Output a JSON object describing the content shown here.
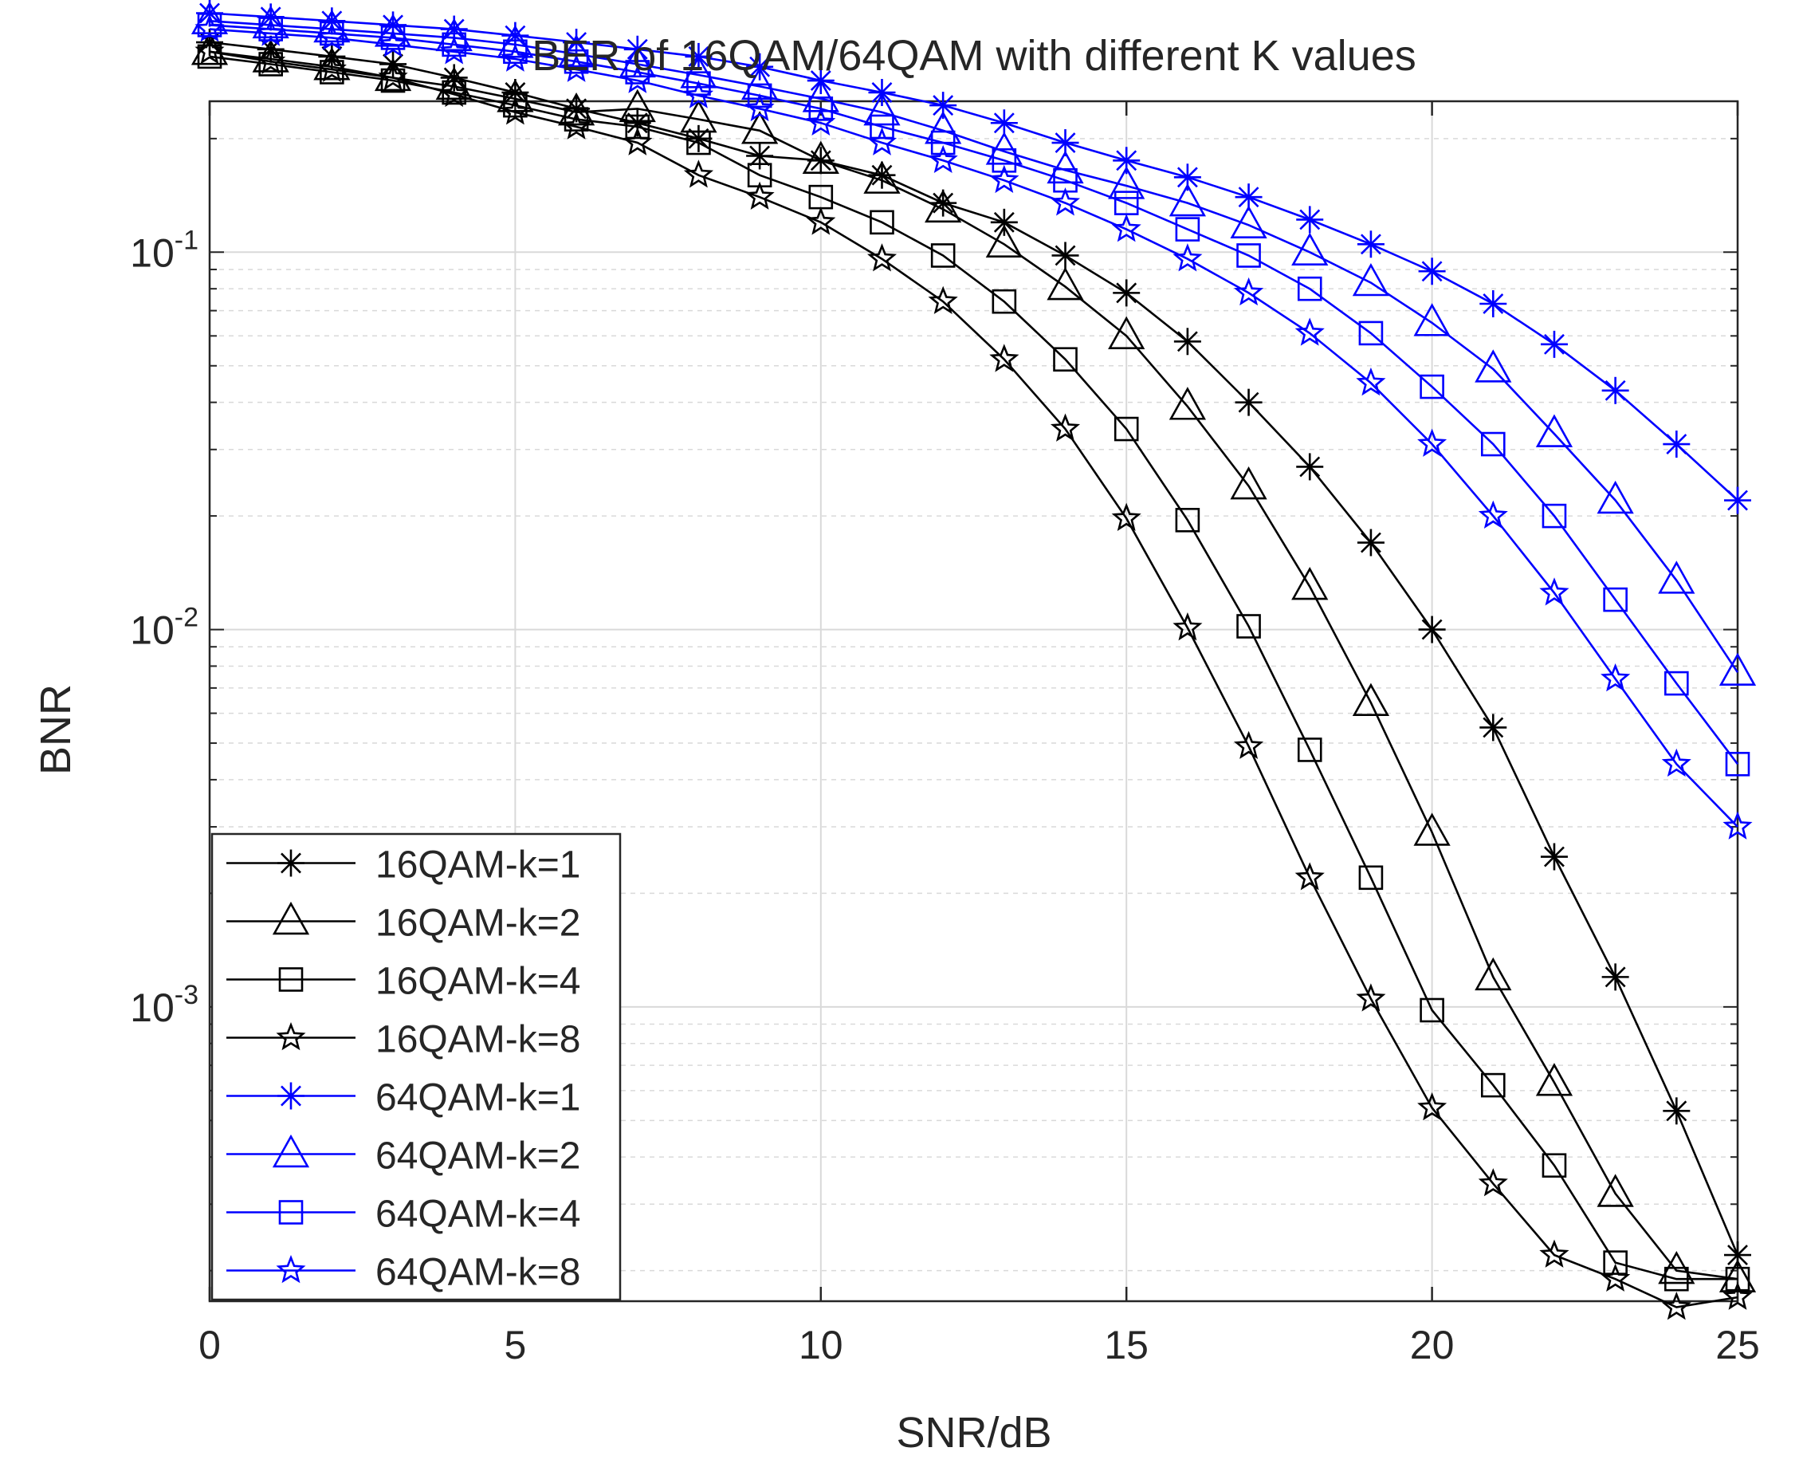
{
  "chart_data": {
    "type": "line",
    "title": "BER of 16QAM/64QAM with different K values",
    "xlabel": "SNR/dB",
    "ylabel": "BNR",
    "xlim": [
      0,
      25
    ],
    "ylim_log10": [
      -3.78,
      -0.6
    ],
    "y_scale": "log",
    "grid": true,
    "legend_position": "bottom-left",
    "xticks": [
      {
        "value": 0,
        "label": "0"
      },
      {
        "value": 5,
        "label": "5"
      },
      {
        "value": 10,
        "label": "10"
      },
      {
        "value": 15,
        "label": "15"
      },
      {
        "value": 20,
        "label": "20"
      },
      {
        "value": 25,
        "label": "25"
      }
    ],
    "yticks": [
      {
        "value": 0.1,
        "base": "10",
        "exp": "-1"
      },
      {
        "value": 0.01,
        "base": "10",
        "exp": "-2"
      },
      {
        "value": 0.001,
        "base": "10",
        "exp": "-3"
      }
    ],
    "x": [
      0,
      1,
      2,
      3,
      4,
      5,
      6,
      7,
      8,
      9,
      10,
      11,
      12,
      13,
      14,
      15,
      16,
      17,
      18,
      19,
      20,
      21,
      22,
      23,
      24,
      25
    ],
    "colors": {
      "black": "#000000",
      "blue": "#0000ff",
      "grid": "#d9d9d9"
    },
    "series": [
      {
        "name": "16QAM-k=1",
        "color": "#000000",
        "marker": "asterisk",
        "values": [
          0.36,
          0.345,
          0.33,
          0.315,
          0.29,
          0.265,
          0.24,
          0.22,
          0.2,
          0.18,
          0.175,
          0.16,
          0.135,
          0.12,
          0.098,
          0.078,
          0.058,
          0.04,
          0.027,
          0.017,
          0.01,
          0.0055,
          0.0025,
          0.0012,
          0.00053,
          0.00022
        ]
      },
      {
        "name": "16QAM-k=2",
        "color": "#000000",
        "marker": "triangle",
        "values": [
          0.34,
          0.325,
          0.31,
          0.29,
          0.275,
          0.255,
          0.235,
          0.24,
          0.225,
          0.21,
          0.175,
          0.155,
          0.13,
          0.105,
          0.081,
          0.06,
          0.039,
          0.024,
          0.013,
          0.0064,
          0.0029,
          0.0012,
          0.00063,
          0.00032,
          0.0002,
          0.00019
        ]
      },
      {
        "name": "16QAM-k=4",
        "color": "#000000",
        "marker": "square",
        "values": [
          0.33,
          0.315,
          0.3,
          0.285,
          0.265,
          0.245,
          0.225,
          0.215,
          0.195,
          0.16,
          0.14,
          0.12,
          0.098,
          0.074,
          0.052,
          0.034,
          0.0195,
          0.0102,
          0.0048,
          0.0022,
          0.00098,
          0.00062,
          0.00038,
          0.00021,
          0.00019,
          0.00019
        ]
      },
      {
        "name": "16QAM-k=8",
        "color": "#000000",
        "marker": "star",
        "values": [
          0.34,
          0.32,
          0.305,
          0.29,
          0.262,
          0.235,
          0.215,
          0.195,
          0.16,
          0.14,
          0.12,
          0.096,
          0.074,
          0.052,
          0.034,
          0.0197,
          0.0101,
          0.0049,
          0.0022,
          0.00105,
          0.00054,
          0.00034,
          0.00022,
          0.00019,
          0.00016,
          0.00017
        ]
      },
      {
        "name": "64QAM-k=1",
        "color": "#0000ff",
        "marker": "asterisk",
        "values": [
          0.43,
          0.42,
          0.41,
          0.4,
          0.39,
          0.375,
          0.36,
          0.345,
          0.33,
          0.31,
          0.285,
          0.265,
          0.245,
          0.22,
          0.195,
          0.175,
          0.158,
          0.14,
          0.122,
          0.105,
          0.089,
          0.073,
          0.057,
          0.043,
          0.031,
          0.022
        ]
      },
      {
        "name": "64QAM-k=2",
        "color": "#0000ff",
        "marker": "triangle",
        "values": [
          0.41,
          0.4,
          0.39,
          0.38,
          0.37,
          0.355,
          0.335,
          0.315,
          0.295,
          0.275,
          0.255,
          0.235,
          0.21,
          0.185,
          0.165,
          0.15,
          0.135,
          0.118,
          0.1,
          0.083,
          0.065,
          0.049,
          0.033,
          0.022,
          0.0135,
          0.0077
        ]
      },
      {
        "name": "64QAM-k=4",
        "color": "#0000ff",
        "marker": "square",
        "values": [
          0.4,
          0.39,
          0.38,
          0.37,
          0.355,
          0.34,
          0.32,
          0.3,
          0.28,
          0.26,
          0.24,
          0.215,
          0.195,
          0.175,
          0.155,
          0.135,
          0.115,
          0.098,
          0.08,
          0.061,
          0.044,
          0.031,
          0.02,
          0.012,
          0.0072,
          0.0044
        ]
      },
      {
        "name": "64QAM-k=8",
        "color": "#0000ff",
        "marker": "star",
        "values": [
          0.39,
          0.38,
          0.37,
          0.355,
          0.34,
          0.325,
          0.305,
          0.285,
          0.26,
          0.24,
          0.22,
          0.195,
          0.175,
          0.155,
          0.135,
          0.115,
          0.096,
          0.078,
          0.061,
          0.045,
          0.031,
          0.02,
          0.0125,
          0.0074,
          0.0044,
          0.003
        ]
      }
    ]
  }
}
